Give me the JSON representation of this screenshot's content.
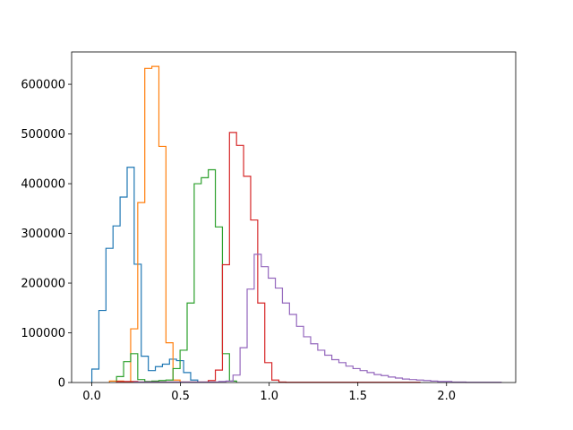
{
  "chart_data": {
    "type": "histogram-step",
    "title": "",
    "xlabel": "",
    "ylabel": "",
    "xlim": [
      -0.114,
      2.39
    ],
    "ylim": [
      0,
      665000
    ],
    "xticks": [
      0.0,
      0.5,
      1.0,
      1.5,
      2.0
    ],
    "xtick_labels": [
      "0.0",
      "0.5",
      "1.0",
      "1.5",
      "2.0"
    ],
    "yticks": [
      0,
      100000,
      200000,
      300000,
      400000,
      500000,
      600000
    ],
    "ytick_labels": [
      "0",
      "100000",
      "200000",
      "300000",
      "400000",
      "500000",
      "600000"
    ],
    "grid": false,
    "legend": "none",
    "series": [
      {
        "color": "#1f77b4",
        "bin_start": 0.0,
        "bin_width": 0.0398,
        "values": [
          27000,
          145000,
          270000,
          315000,
          373000,
          433000,
          238000,
          53000,
          24000,
          32000,
          37000,
          47000,
          44000,
          20000,
          5000
        ]
      },
      {
        "color": "#ff7f0e",
        "bin_start": 0.0995,
        "bin_width": 0.0398,
        "values": [
          3000,
          3000,
          1500,
          108000,
          362000,
          632000,
          636000,
          475000,
          80000,
          5000
        ]
      },
      {
        "color": "#2ca02c",
        "bin_start": 0.1393,
        "bin_width": 0.0398,
        "values": [
          12000,
          42000,
          58000,
          6000,
          2000,
          3000,
          4000,
          5000,
          28000,
          65000,
          160000,
          400000,
          412000,
          428000,
          313000,
          58000,
          3000
        ]
      },
      {
        "color": "#d62728",
        "bin_start": 0.1393,
        "bin_width": 0.0398,
        "values": [
          2000,
          2000,
          2000,
          1000,
          1000,
          1000,
          1000,
          1000,
          1000,
          1000,
          1000,
          1000,
          1000,
          4000,
          25000,
          237000,
          503000,
          477000,
          415000,
          327000,
          160000,
          40000,
          5000,
          1000,
          500,
          500,
          500,
          500,
          500,
          500,
          500,
          500,
          500,
          500,
          500,
          500,
          500,
          500,
          500,
          500,
          500,
          500,
          500
        ]
      },
      {
        "color": "#9467bd",
        "bin_start": 0.2388,
        "bin_width": 0.0398,
        "values": [
          1000,
          1000,
          1000,
          1000,
          1000,
          1000,
          1000,
          1000,
          1000,
          1000,
          1000,
          1000,
          2000,
          3000,
          15000,
          70000,
          188000,
          258000,
          233000,
          210000,
          190000,
          160000,
          137000,
          113000,
          92000,
          78000,
          65000,
          55000,
          46000,
          40000,
          33000,
          28000,
          24000,
          20000,
          16000,
          14000,
          11000,
          9000,
          7000,
          6000,
          5000,
          4000,
          3000,
          2000,
          2000,
          1000,
          1000,
          500,
          500,
          500,
          500,
          500
        ]
      }
    ]
  }
}
